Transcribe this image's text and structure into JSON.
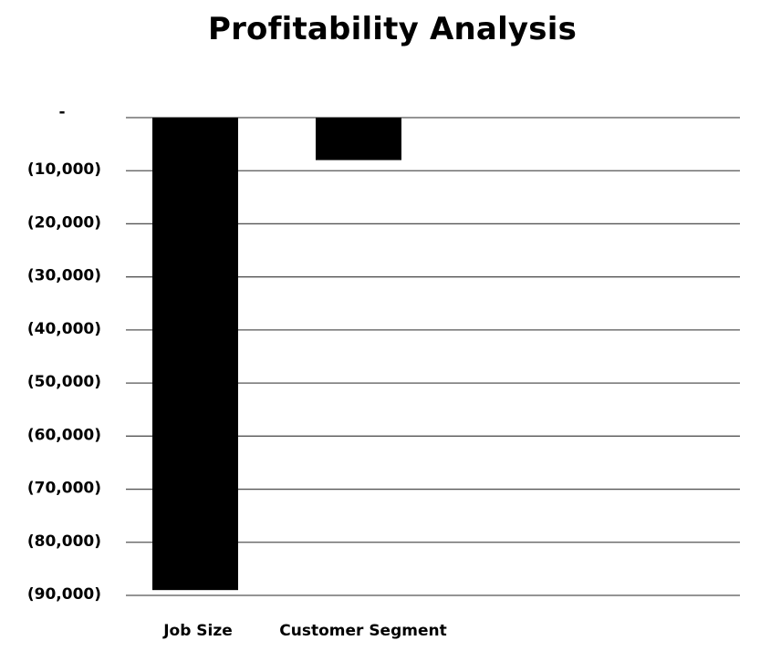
{
  "chart_data": {
    "type": "bar",
    "title": "Profitability Analysis",
    "xlabel": "",
    "ylabel": "",
    "categories": [
      "Job Size",
      "Customer Segment"
    ],
    "values": [
      -89000,
      -8000
    ],
    "ylim": [
      -90000,
      0
    ],
    "yticks": [
      0,
      -10000,
      -20000,
      -30000,
      -40000,
      -50000,
      -60000,
      -70000,
      -80000,
      -90000
    ],
    "ytick_labels": [
      "-",
      "(10,000)",
      "(20,000)",
      "(30,000)",
      "(40,000)",
      "(50,000)",
      "(60,000)",
      "(70,000)",
      "(80,000)",
      "(90,000)"
    ],
    "grid": true,
    "legend": "none",
    "bar_color": "#000000",
    "grid_color": "#555555"
  }
}
